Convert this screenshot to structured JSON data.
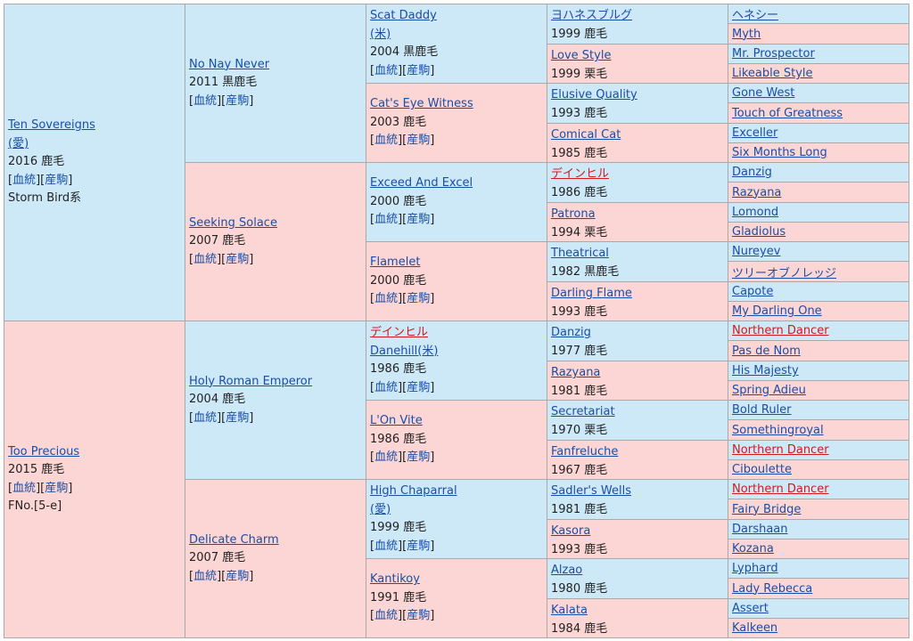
{
  "links": {
    "bloodline": "血統",
    "foal": "産駒"
  },
  "g1": [
    {
      "name": "Ten Sovereigns",
      "country": "(愛)",
      "year_coat": "2016 鹿毛",
      "extra": "Storm Bird系",
      "side": "sire"
    },
    {
      "name": "Too Precious",
      "year_coat": "2015 鹿毛",
      "extra": "FNo.[5-e]",
      "side": "dam"
    }
  ],
  "g2": [
    {
      "name": "No Nay Never",
      "year_coat": "2011 黒鹿毛",
      "side": "sire"
    },
    {
      "name": "Seeking Solace",
      "year_coat": "2007 鹿毛",
      "side": "dam"
    },
    {
      "name": "Holy Roman Emperor",
      "year_coat": "2004 鹿毛",
      "side": "sire"
    },
    {
      "name": "Delicate Charm",
      "year_coat": "2007 鹿毛",
      "side": "dam"
    }
  ],
  "g3": [
    {
      "name": "Scat Daddy",
      "country": "(米)",
      "year_coat": "2004 黒鹿毛",
      "side": "sire"
    },
    {
      "name": "Cat's Eye Witness",
      "year_coat": "2003 鹿毛",
      "side": "dam"
    },
    {
      "name": "Exceed And Excel",
      "year_coat": "2000 鹿毛",
      "side": "sire"
    },
    {
      "name": "Flamelet",
      "year_coat": "2000 鹿毛",
      "side": "dam"
    },
    {
      "name": "デインヒル",
      "alt_name": "Danehill(米)",
      "year_coat": "1986 鹿毛",
      "side": "sire",
      "red": true
    },
    {
      "name": "L'On Vite",
      "year_coat": "1986 鹿毛",
      "side": "dam"
    },
    {
      "name": "High Chaparral",
      "country": "(愛)",
      "year_coat": "1999 鹿毛",
      "side": "sire"
    },
    {
      "name": "Kantikoy",
      "year_coat": "1991 鹿毛",
      "side": "dam"
    }
  ],
  "g4": [
    {
      "name": "ヨハネスブルグ",
      "year_coat": "1999 鹿毛",
      "side": "sire"
    },
    {
      "name": "Love Style",
      "year_coat": "1999 栗毛",
      "side": "dam"
    },
    {
      "name": "Elusive Quality",
      "year_coat": "1993 鹿毛",
      "side": "sire"
    },
    {
      "name": "Comical Cat",
      "year_coat": "1985 鹿毛",
      "side": "dam"
    },
    {
      "name": "デインヒル",
      "year_coat": "1986 鹿毛",
      "side": "sire",
      "red": true
    },
    {
      "name": "Patrona",
      "year_coat": "1994 栗毛",
      "side": "dam"
    },
    {
      "name": "Theatrical",
      "year_coat": "1982 黒鹿毛",
      "side": "sire"
    },
    {
      "name": "Darling Flame",
      "year_coat": "1993 鹿毛",
      "side": "dam"
    },
    {
      "name": "Danzig",
      "year_coat": "1977 鹿毛",
      "side": "sire"
    },
    {
      "name": "Razyana",
      "year_coat": "1981 鹿毛",
      "side": "dam"
    },
    {
      "name": "Secretariat",
      "year_coat": "1970 栗毛",
      "side": "sire"
    },
    {
      "name": "Fanfreluche",
      "year_coat": "1967 鹿毛",
      "side": "dam"
    },
    {
      "name": "Sadler's Wells",
      "year_coat": "1981 鹿毛",
      "side": "sire"
    },
    {
      "name": "Kasora",
      "year_coat": "1993 鹿毛",
      "side": "dam"
    },
    {
      "name": "Alzao",
      "year_coat": "1980 鹿毛",
      "side": "sire"
    },
    {
      "name": "Kalata",
      "year_coat": "1984 鹿毛",
      "side": "dam"
    }
  ],
  "g5": [
    {
      "name": "ヘネシー",
      "side": "sire"
    },
    {
      "name": "Myth",
      "side": "dam"
    },
    {
      "name": "Mr. Prospector",
      "side": "sire"
    },
    {
      "name": "Likeable Style",
      "side": "dam"
    },
    {
      "name": "Gone West",
      "side": "sire"
    },
    {
      "name": "Touch of Greatness",
      "side": "dam"
    },
    {
      "name": "Exceller",
      "side": "sire"
    },
    {
      "name": "Six Months Long",
      "side": "dam"
    },
    {
      "name": "Danzig",
      "side": "sire"
    },
    {
      "name": "Razyana",
      "side": "dam"
    },
    {
      "name": "Lomond",
      "side": "sire"
    },
    {
      "name": "Gladiolus",
      "side": "dam"
    },
    {
      "name": "Nureyev",
      "side": "sire"
    },
    {
      "name": "ツリーオブノレッジ",
      "side": "dam"
    },
    {
      "name": "Capote",
      "side": "sire"
    },
    {
      "name": "My Darling One",
      "side": "dam"
    },
    {
      "name": "Northern Dancer",
      "side": "sire",
      "red": true
    },
    {
      "name": "Pas de Nom",
      "side": "dam"
    },
    {
      "name": "His Majesty",
      "side": "sire"
    },
    {
      "name": "Spring Adieu",
      "side": "dam"
    },
    {
      "name": "Bold Ruler",
      "side": "sire"
    },
    {
      "name": "Somethingroyal",
      "side": "dam"
    },
    {
      "name": "Northern Dancer",
      "side": "sire",
      "red": true
    },
    {
      "name": "Ciboulette",
      "side": "dam"
    },
    {
      "name": "Northern Dancer",
      "side": "sire",
      "red": true
    },
    {
      "name": "Fairy Bridge",
      "side": "dam"
    },
    {
      "name": "Darshaan",
      "side": "sire"
    },
    {
      "name": "Kozana",
      "side": "dam"
    },
    {
      "name": "Lyphard",
      "side": "sire"
    },
    {
      "name": "Lady Rebecca",
      "side": "dam"
    },
    {
      "name": "Assert",
      "side": "sire"
    },
    {
      "name": "Kalkeen",
      "side": "dam"
    }
  ],
  "colors": {
    "sire_bg": "#cde9f8",
    "dam_bg": "#fbd6d4",
    "link": "#1a4ea6",
    "highlight": "#d11a1a",
    "border": "#a9a9a9"
  }
}
